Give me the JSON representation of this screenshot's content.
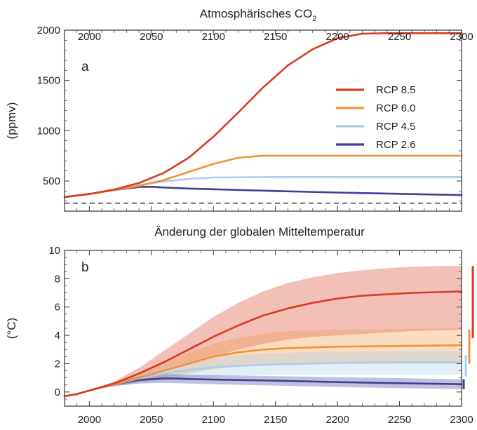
{
  "chart_data": [
    {
      "type": "line",
      "panel_label": "a",
      "title": "Atmosphärisches CO",
      "title_subscript": "2",
      "xlabel": "",
      "ylabel": "(ppmv)",
      "xlim": [
        1980,
        2300
      ],
      "ylim": [
        200,
        2000
      ],
      "xticks": [
        2000,
        2050,
        2100,
        2150,
        2200,
        2250,
        2300
      ],
      "yticks": [
        500,
        1000,
        1500,
        2000
      ],
      "legend_position": "top-right",
      "reference_line": {
        "value": 280,
        "style": "dashed",
        "color": "#222222"
      },
      "series": [
        {
          "name": "RCP 8.5",
          "color": "#d93a1f",
          "x": [
            1980,
            2000,
            2020,
            2040,
            2060,
            2080,
            2100,
            2120,
            2140,
            2160,
            2180,
            2200,
            2220,
            2240,
            2260,
            2280,
            2300
          ],
          "y": [
            340,
            370,
            415,
            480,
            580,
            730,
            940,
            1180,
            1430,
            1650,
            1810,
            1920,
            1965,
            1970,
            1970,
            1970,
            1970
          ]
        },
        {
          "name": "RCP 6.0",
          "color": "#f0923a",
          "x": [
            1980,
            2000,
            2020,
            2040,
            2060,
            2080,
            2100,
            2120,
            2140,
            2160,
            2200,
            2250,
            2300
          ],
          "y": [
            340,
            370,
            410,
            450,
            510,
            590,
            670,
            730,
            752,
            752,
            752,
            752,
            752
          ]
        },
        {
          "name": "RCP 4.5",
          "color": "#a9cdea",
          "x": [
            1980,
            2000,
            2020,
            2040,
            2060,
            2080,
            2100,
            2150,
            2200,
            2250,
            2300
          ],
          "y": [
            340,
            370,
            410,
            460,
            495,
            520,
            535,
            540,
            540,
            540,
            540
          ]
        },
        {
          "name": "RCP 2.6",
          "color": "#3d3f95",
          "x": [
            1980,
            2000,
            2020,
            2040,
            2050,
            2060,
            2080,
            2100,
            2150,
            2200,
            2250,
            2300
          ],
          "y": [
            340,
            370,
            410,
            440,
            443,
            435,
            425,
            418,
            400,
            385,
            372,
            360
          ]
        }
      ]
    },
    {
      "type": "line",
      "panel_label": "b",
      "title": "Änderung der globalen Mitteltemperatur",
      "xlabel": "",
      "ylabel": "(°C)",
      "xlim": [
        1980,
        2300
      ],
      "ylim": [
        -1,
        10
      ],
      "xticks": [
        2000,
        2050,
        2100,
        2150,
        2200,
        2250,
        2300
      ],
      "yticks": [
        0,
        2,
        4,
        6,
        8,
        10
      ],
      "series": [
        {
          "name": "RCP 8.5",
          "color": "#d93a1f",
          "x": [
            1980,
            1990,
            2000,
            2020,
            2040,
            2060,
            2080,
            2100,
            2120,
            2140,
            2160,
            2180,
            2200,
            2220,
            2240,
            2260,
            2280,
            2300
          ],
          "y": [
            -0.3,
            -0.15,
            0.1,
            0.6,
            1.3,
            2.1,
            3.0,
            3.9,
            4.7,
            5.4,
            5.9,
            6.3,
            6.6,
            6.8,
            6.9,
            7.0,
            7.05,
            7.1
          ],
          "lower": [
            -0.3,
            -0.15,
            0.1,
            0.5,
            1.0,
            1.5,
            2.0,
            2.5,
            3.0,
            3.4,
            3.7,
            3.9,
            4.0,
            4.1,
            4.2,
            4.3,
            4.35,
            4.4
          ],
          "upper": [
            -0.3,
            -0.15,
            0.1,
            0.75,
            1.7,
            2.9,
            4.1,
            5.3,
            6.3,
            7.1,
            7.7,
            8.1,
            8.4,
            8.6,
            8.75,
            8.85,
            8.9,
            8.9
          ],
          "range_bar": [
            3.8,
            8.9
          ]
        },
        {
          "name": "RCP 6.0",
          "color": "#f0923a",
          "x": [
            1980,
            1990,
            2000,
            2020,
            2040,
            2060,
            2080,
            2100,
            2120,
            2140,
            2160,
            2200,
            2250,
            2300
          ],
          "y": [
            -0.3,
            -0.15,
            0.1,
            0.55,
            1.0,
            1.5,
            2.0,
            2.5,
            2.8,
            3.0,
            3.1,
            3.2,
            3.25,
            3.3
          ],
          "lower": [
            -0.3,
            -0.15,
            0.1,
            0.4,
            0.7,
            1.0,
            1.3,
            1.6,
            1.8,
            1.9,
            2.0,
            2.0,
            2.0,
            2.0
          ],
          "upper": [
            -0.3,
            -0.15,
            0.1,
            0.7,
            1.4,
            2.1,
            2.8,
            3.4,
            3.8,
            4.1,
            4.3,
            4.4,
            4.45,
            4.5
          ],
          "range_bar": [
            2.0,
            4.4
          ]
        },
        {
          "name": "RCP 4.5",
          "color": "#a9cdea",
          "x": [
            1980,
            1990,
            2000,
            2020,
            2040,
            2060,
            2080,
            2100,
            2120,
            2150,
            2200,
            2250,
            2300
          ],
          "y": [
            -0.3,
            -0.15,
            0.1,
            0.55,
            0.95,
            1.3,
            1.55,
            1.75,
            1.85,
            1.95,
            2.05,
            2.1,
            2.1
          ],
          "lower": [
            -0.3,
            -0.15,
            0.1,
            0.4,
            0.65,
            0.85,
            1.0,
            1.1,
            1.15,
            1.2,
            1.2,
            1.2,
            1.2
          ],
          "upper": [
            -0.3,
            -0.15,
            0.1,
            0.7,
            1.25,
            1.75,
            2.1,
            2.4,
            2.6,
            2.75,
            2.85,
            2.9,
            2.9
          ],
          "range_bar": [
            1.1,
            2.6
          ]
        },
        {
          "name": "RCP 2.6",
          "color": "#3d3f95",
          "x": [
            1980,
            1990,
            2000,
            2020,
            2040,
            2060,
            2070,
            2080,
            2100,
            2150,
            2200,
            2250,
            2300
          ],
          "y": [
            -0.3,
            -0.15,
            0.1,
            0.55,
            0.85,
            0.95,
            0.95,
            0.92,
            0.88,
            0.8,
            0.7,
            0.62,
            0.55
          ],
          "lower": [
            -0.3,
            -0.15,
            0.1,
            0.42,
            0.6,
            0.65,
            0.62,
            0.6,
            0.55,
            0.45,
            0.35,
            0.28,
            0.2
          ],
          "upper": [
            -0.3,
            -0.15,
            0.1,
            0.68,
            1.1,
            1.25,
            1.25,
            1.22,
            1.18,
            1.12,
            1.05,
            0.98,
            0.9
          ],
          "range_bar": [
            0.2,
            0.9
          ]
        }
      ]
    }
  ]
}
